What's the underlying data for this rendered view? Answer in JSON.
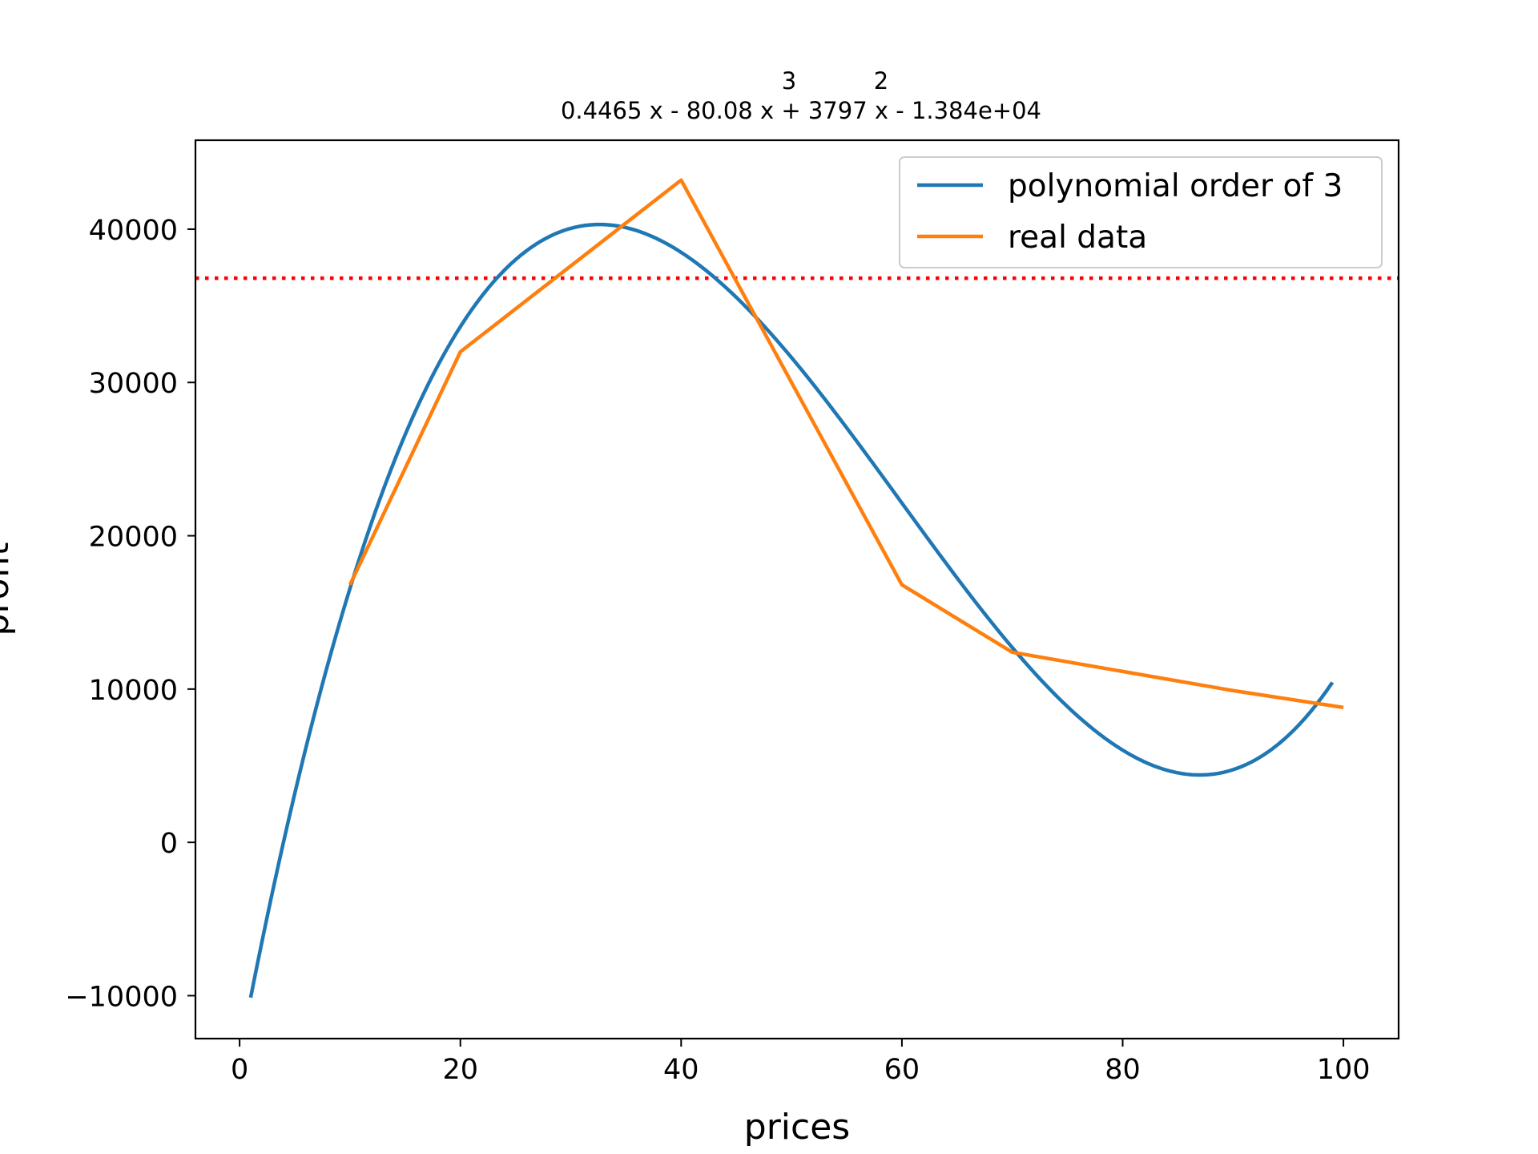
{
  "chart_data": {
    "type": "line",
    "title_exponents": [
      "3",
      "2"
    ],
    "title": "0.4465 x - 80.08 x + 3797 x - 1.384e+04",
    "xlabel": "prices",
    "ylabel": "profit",
    "xlim": [
      -4,
      105
    ],
    "ylim": [
      -12800,
      45800
    ],
    "x_ticks": [
      0,
      20,
      40,
      60,
      80,
      100
    ],
    "x_tick_labels": [
      "0",
      "20",
      "40",
      "60",
      "80",
      "100"
    ],
    "y_ticks": [
      -10000,
      0,
      10000,
      20000,
      30000,
      40000
    ],
    "y_tick_labels": [
      "−10000",
      "0",
      "10000",
      "20000",
      "30000",
      "40000"
    ],
    "grid": false,
    "legend_position": "upper right",
    "series": [
      {
        "name": "polynomial order of 3",
        "color": "#1f77b4",
        "style": "solid",
        "polynomial_coefficients": [
          0.4465,
          -80.08,
          3797,
          -13840
        ],
        "x_range": [
          1,
          99
        ]
      },
      {
        "name": "real data",
        "color": "#ff7f0e",
        "style": "solid",
        "x": [
          10,
          20,
          40,
          60,
          70,
          90,
          100
        ],
        "y": [
          16800,
          32000,
          43200,
          16800,
          12400,
          9900,
          8800
        ]
      }
    ],
    "hlines": [
      {
        "y": 36800,
        "color": "#ff0000",
        "style": "dotted"
      }
    ]
  }
}
